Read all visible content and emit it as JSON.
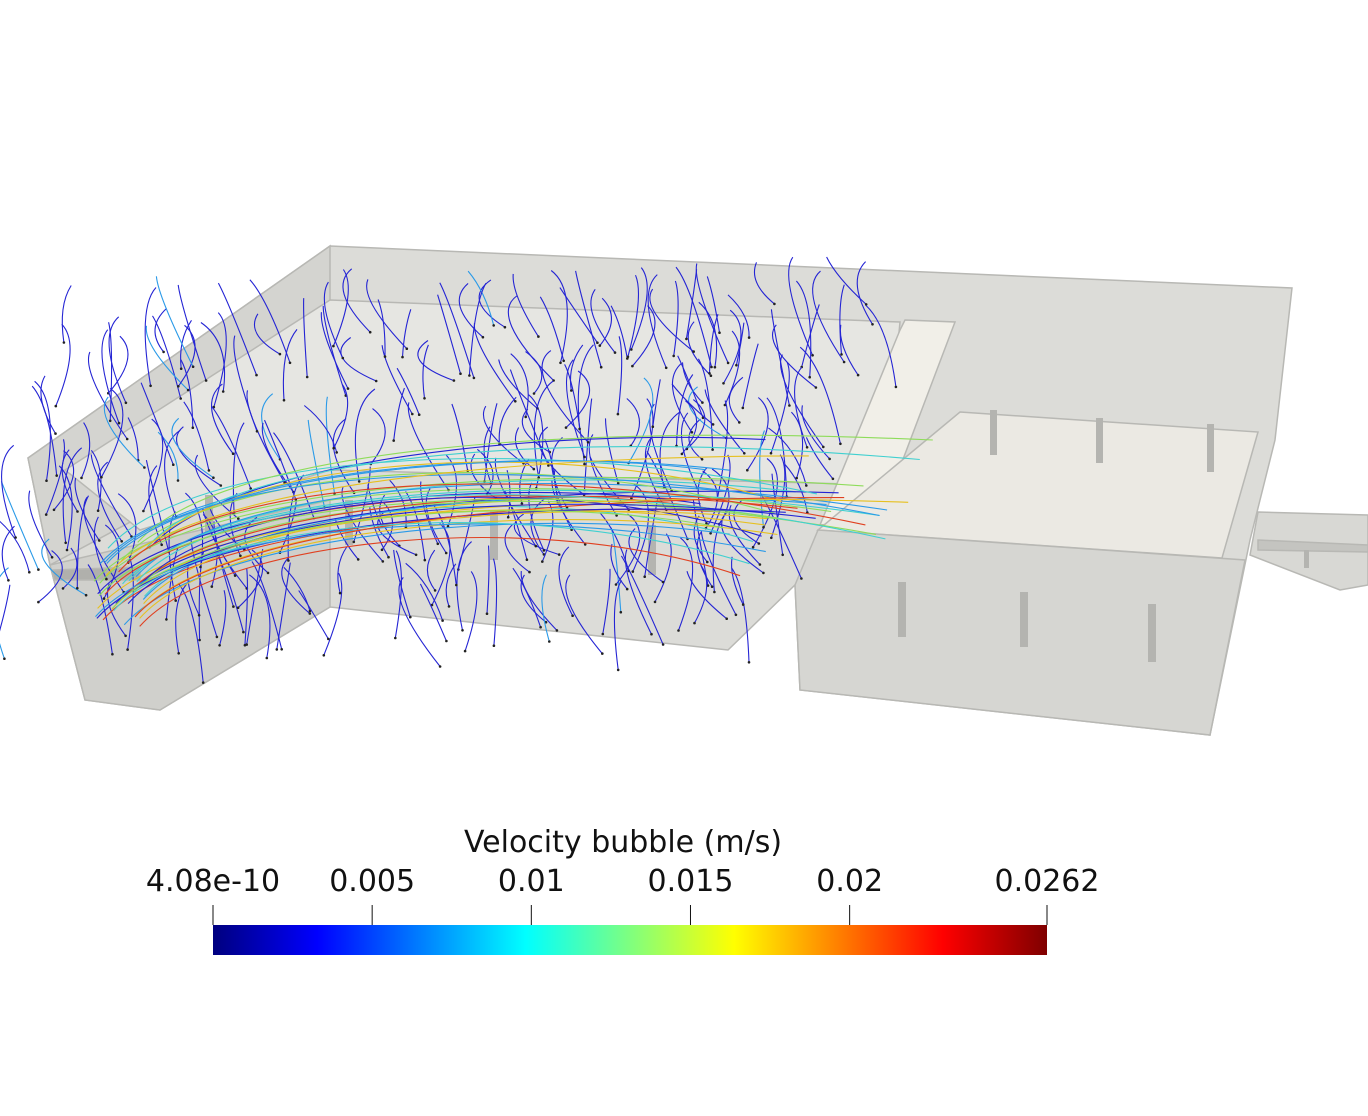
{
  "colorbar": {
    "title": "Velocity bubble (m/s)",
    "range": [
      4.08e-10,
      0.0262
    ],
    "ticks": [
      4.08e-10,
      0.005,
      0.01,
      0.015,
      0.02,
      0.0262
    ]
  }
}
